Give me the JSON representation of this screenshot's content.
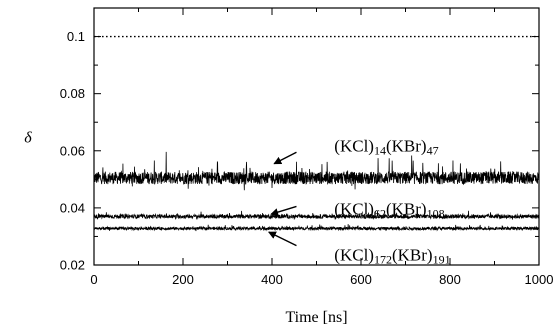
{
  "chart_data": {
    "type": "line",
    "xlabel": "Time [ns]",
    "ylabel": "δ",
    "xlim": [
      0,
      1000
    ],
    "ylim": [
      0.02,
      0.11
    ],
    "xticks": [
      0,
      200,
      400,
      600,
      800,
      1000
    ],
    "yticks": [
      0.02,
      0.04,
      0.06,
      0.08,
      0.1
    ],
    "xtick_labels": [
      "0",
      "200",
      "400",
      "600",
      "800",
      "1000"
    ],
    "ytick_labels": [
      "0.02",
      "0.04",
      "0.06",
      "0.08",
      "0.1"
    ],
    "grid": false,
    "series": [
      {
        "name": "(KCl)14(KBr)47",
        "label_parts": [
          [
            "(KCl)",
            ""
          ],
          [
            "14",
            "sub"
          ],
          [
            "(KBr)",
            ""
          ],
          [
            "47",
            "sub"
          ]
        ],
        "mean": 0.0505,
        "spread": 0.0022,
        "spike": 0.0055,
        "x_range": [
          0,
          1000
        ],
        "color": "#000000",
        "style": "noisy-solid"
      },
      {
        "name": "(KCl)62(KBr)108",
        "label_parts": [
          [
            "(KCl)",
            ""
          ],
          [
            "62",
            "sub"
          ],
          [
            "(KBr)",
            ""
          ],
          [
            "108",
            "sub"
          ]
        ],
        "mean": 0.037,
        "spread": 0.0007,
        "spike": 0.001,
        "x_range": [
          0,
          1000
        ],
        "color": "#000000",
        "style": "noisy-solid"
      },
      {
        "name": "(KCl)172(KBr)191",
        "label_parts": [
          [
            "(KCl)",
            ""
          ],
          [
            "172",
            "sub"
          ],
          [
            "(KBr)",
            ""
          ],
          [
            "191",
            "sub"
          ]
        ],
        "mean": 0.0328,
        "spread": 0.0005,
        "spike": 0.0008,
        "x_range": [
          0,
          1000
        ],
        "color": "#000000",
        "style": "noisy-solid"
      },
      {
        "name": "",
        "constant": 0.1,
        "x_range": [
          0,
          1000
        ],
        "color": "#000000",
        "style": "dotted"
      }
    ],
    "annotations": [
      {
        "series_index": 0,
        "text_at": [
          540,
          0.0615
        ],
        "arrow_from": [
          455,
          0.0595
        ],
        "arrow_to": [
          405,
          0.0555
        ]
      },
      {
        "series_index": 1,
        "text_at": [
          540,
          0.0395
        ],
        "arrow_from": [
          455,
          0.0405
        ],
        "arrow_to": [
          398,
          0.0378
        ]
      },
      {
        "series_index": 2,
        "text_at": [
          540,
          0.0233
        ],
        "arrow_from": [
          455,
          0.0268
        ],
        "arrow_to": [
          393,
          0.0315
        ]
      }
    ]
  }
}
